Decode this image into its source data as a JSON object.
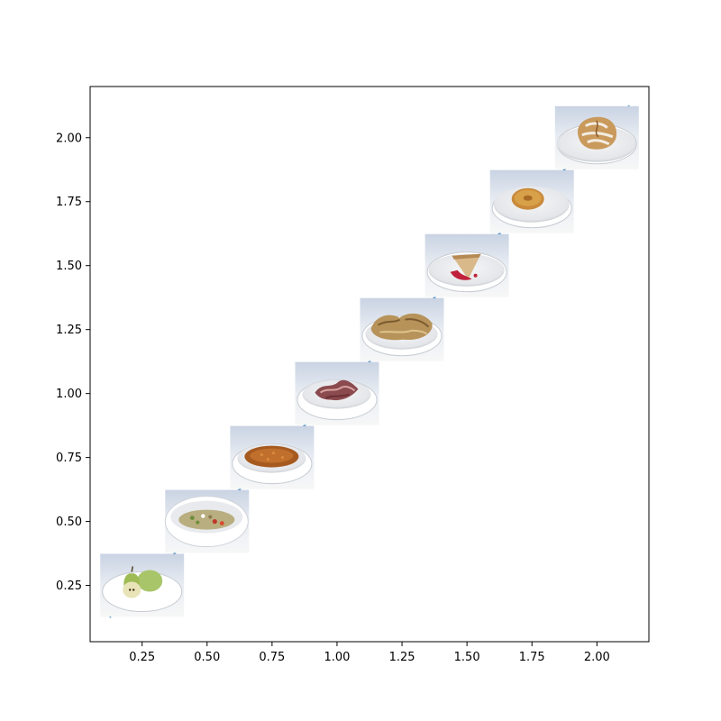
{
  "chart_data": {
    "type": "line",
    "title": "",
    "xlabel": "",
    "ylabel": "",
    "xlim": [
      0.05,
      2.2
    ],
    "ylim": [
      0.03,
      2.2
    ],
    "grid": false,
    "x_ticks": [
      "0.25",
      "0.50",
      "0.75",
      "1.00",
      "1.25",
      "1.50",
      "1.75",
      "2.00"
    ],
    "y_ticks": [
      "0.25",
      "0.50",
      "0.75",
      "1.00",
      "1.25",
      "1.50",
      "1.75",
      "2.00"
    ],
    "line_color": "#1f77b4",
    "series": [
      {
        "x": [
          0.125,
          0.375,
          0.625,
          0.875,
          1.125,
          1.375,
          1.625,
          1.875,
          2.125
        ],
        "y": [
          0.125,
          0.375,
          0.625,
          0.875,
          1.125,
          1.375,
          1.625,
          1.875,
          2.125
        ]
      }
    ],
    "image_markers": [
      {
        "x": 0.25,
        "y": 0.25,
        "icon": "pear-plate-icon"
      },
      {
        "x": 0.5,
        "y": 0.5,
        "icon": "pasta-salad-bowl-icon"
      },
      {
        "x": 0.75,
        "y": 0.75,
        "icon": "baked-beans-plate-icon"
      },
      {
        "x": 1.0,
        "y": 1.0,
        "icon": "bacon-plate-icon"
      },
      {
        "x": 1.25,
        "y": 1.25,
        "icon": "fried-food-plate-icon"
      },
      {
        "x": 1.5,
        "y": 1.5,
        "icon": "cherry-pie-slice-plate-icon"
      },
      {
        "x": 1.75,
        "y": 1.75,
        "icon": "donut-plate-icon"
      },
      {
        "x": 2.0,
        "y": 2.0,
        "icon": "cinnamon-roll-plate-icon"
      }
    ]
  }
}
